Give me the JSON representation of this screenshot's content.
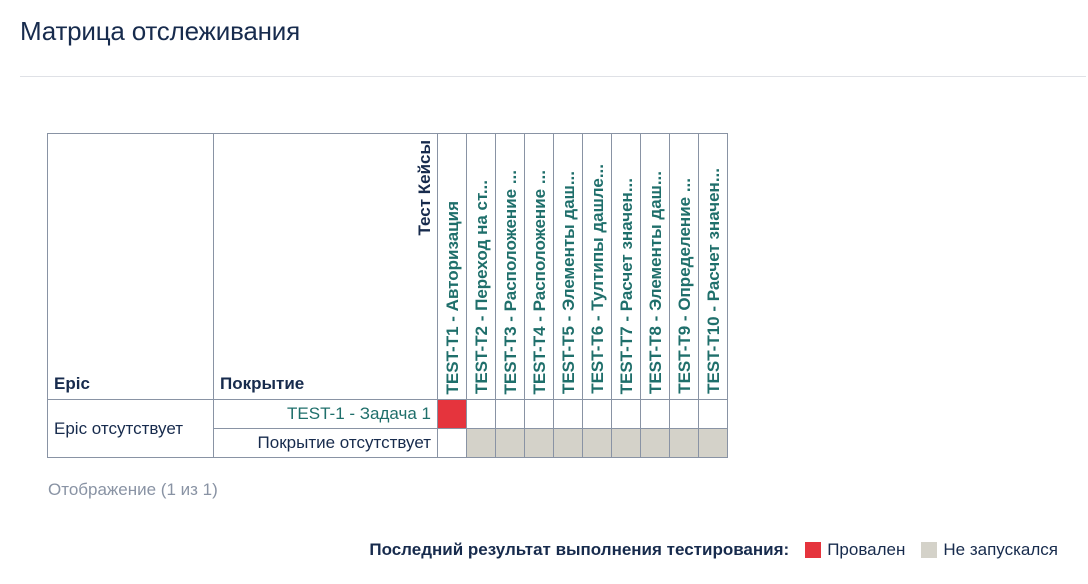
{
  "page_title": "Матрица отслеживания",
  "matrix": {
    "epic_header": "Epic",
    "coverage_header": "Покрытие",
    "testcases_header": "Тест Кейсы",
    "test_cases": [
      "TEST-T1 - Авторизация",
      "TEST-T2 - Переход на ст...",
      "TEST-T3 - Расположение ...",
      "TEST-T4 - Расположение ...",
      "TEST-T5 - Элементы даш...",
      "TEST-T6 - Тултипы дашле...",
      "TEST-T7 - Расчет значен...",
      "TEST-T8 - Элементы даш...",
      "TEST-T9 - Определение ...",
      "TEST-T10 - Расчет значен..."
    ],
    "epic_value": "Epic отсутствует",
    "rows": [
      {
        "coverage": "TEST-1 - Задача 1",
        "results": [
          "failed",
          "empty",
          "empty",
          "empty",
          "empty",
          "empty",
          "empty",
          "empty",
          "empty",
          "empty"
        ]
      },
      {
        "coverage": "Покрытие отсутствует",
        "results": [
          "empty",
          "not_run",
          "not_run",
          "not_run",
          "not_run",
          "not_run",
          "not_run",
          "not_run",
          "not_run",
          "not_run"
        ]
      }
    ]
  },
  "pager": "Отображение (1 из 1)",
  "legend": {
    "title": "Последний результат выполнения тестирования:",
    "failed_label": "Провален",
    "not_run_label": "Не запускался",
    "failed_color": "#e5343d",
    "not_run_color": "#d4d2c9"
  }
}
